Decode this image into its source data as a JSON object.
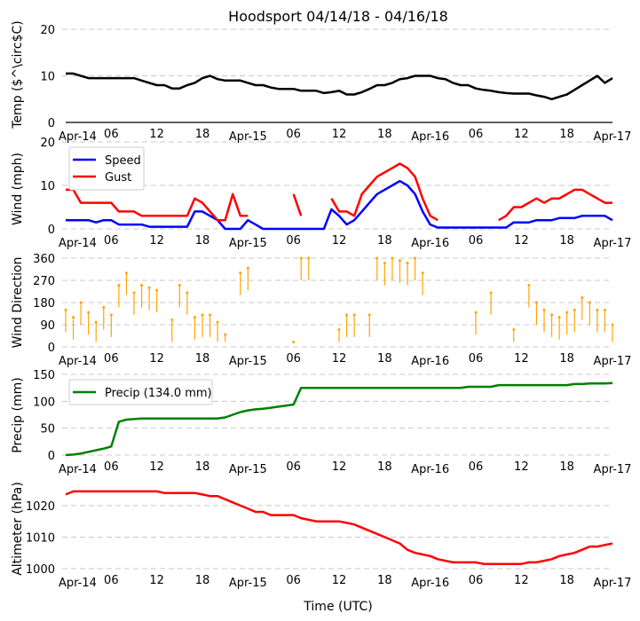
{
  "title": "Hoodsport 04/14/18 - 04/16/18",
  "xlabel": "Time (UTC)",
  "x_tick_labels": [
    "Apr-14",
    "06",
    "12",
    "18",
    "Apr-15",
    "06",
    "12",
    "18",
    "Apr-16",
    "06",
    "12",
    "18",
    "Apr-17"
  ],
  "x_hours_range": [
    0,
    72
  ],
  "chart_data": [
    {
      "type": "line",
      "id": "temp",
      "ylabel": "Temp ($^\\circ$C)",
      "ylabel_display": "Temp ( ̊C)",
      "ylim": [
        0,
        20
      ],
      "yticks": [
        0,
        10,
        20
      ],
      "grid": true,
      "series": [
        {
          "name": "Temp",
          "color": "#000000",
          "values": [
            10.5,
            10.5,
            10,
            9.5,
            9.5,
            9.5,
            9.5,
            9.5,
            9.5,
            9.5,
            9,
            8.5,
            8,
            8,
            7.3,
            7.3,
            8,
            8.5,
            9.5,
            10,
            9.3,
            9,
            9,
            9,
            8.5,
            8,
            8,
            7.5,
            7.2,
            7.2,
            7.2,
            6.8,
            6.8,
            6.8,
            6.3,
            6.5,
            6.8,
            6,
            6,
            6.5,
            7.2,
            8,
            8,
            8.5,
            9.3,
            9.5,
            10,
            10,
            10,
            9.5,
            9.3,
            8.5,
            8,
            8,
            7.3,
            7,
            6.8,
            6.5,
            6.3,
            6.2,
            6.2,
            6.2,
            5.8,
            5.5,
            5,
            5.5,
            6,
            7,
            8,
            9,
            10,
            8.5,
            9.5
          ]
        }
      ]
    },
    {
      "type": "line",
      "id": "wind",
      "ylabel": "Wind (mph)",
      "ylim": [
        0,
        20
      ],
      "yticks": [
        0,
        10,
        20
      ],
      "grid": true,
      "legend": "top-left",
      "series": [
        {
          "name": "Speed",
          "color": "#0000ff",
          "values": [
            2,
            2,
            2,
            2,
            1.5,
            2,
            2,
            1,
            1,
            1,
            1,
            0.5,
            0.5,
            0.5,
            0.5,
            0.5,
            0.5,
            4,
            4,
            3,
            2,
            0,
            0,
            0,
            2,
            1,
            0,
            0,
            0,
            0,
            0,
            0,
            0,
            0,
            0,
            4.5,
            3,
            1,
            2,
            4,
            6,
            8,
            9,
            10,
            11,
            10,
            8,
            4,
            1,
            0.3,
            0.3,
            0.3,
            0.3,
            0.3,
            0.3,
            0.3,
            0.3,
            0.3,
            0.3,
            1.5,
            1.5,
            1.5,
            2,
            2,
            2,
            2.5,
            2.5,
            2.5,
            3,
            3,
            3,
            3,
            2
          ]
        },
        {
          "name": "Gust",
          "color": "#ff0000",
          "values": [
            9,
            9,
            6,
            6,
            6,
            6,
            6,
            4,
            4,
            4,
            3,
            3,
            3,
            3,
            3,
            3,
            3,
            7,
            6,
            4,
            2,
            2,
            8,
            3,
            3,
            null,
            null,
            null,
            null,
            null,
            8,
            3,
            null,
            null,
            null,
            7,
            4,
            4,
            3,
            8,
            10,
            12,
            13,
            14,
            15,
            14,
            12,
            7,
            3,
            2,
            null,
            3,
            null,
            3,
            null,
            2,
            null,
            2,
            3,
            5,
            5,
            6,
            7,
            6,
            7,
            7,
            8,
            9,
            9,
            8,
            7,
            6,
            6
          ]
        }
      ]
    },
    {
      "type": "scatter",
      "id": "direction",
      "ylabel": "Wind Direction",
      "ylim": [
        0,
        360
      ],
      "yticks": [
        0,
        90,
        180,
        270,
        360
      ],
      "grid": true,
      "series": [
        {
          "name": "Direction",
          "color": "#ffa500",
          "values": [
            150,
            120,
            180,
            140,
            100,
            160,
            130,
            250,
            300,
            220,
            250,
            240,
            230,
            null,
            110,
            250,
            220,
            120,
            130,
            130,
            100,
            50,
            null,
            300,
            320,
            null,
            null,
            null,
            null,
            null,
            20,
            360,
            360,
            null,
            null,
            null,
            70,
            130,
            130,
            null,
            130,
            360,
            340,
            360,
            350,
            340,
            360,
            300,
            null,
            null,
            null,
            null,
            null,
            null,
            140,
            null,
            220,
            null,
            null,
            70,
            null,
            250,
            180,
            150,
            130,
            120,
            140,
            150,
            200,
            180,
            150,
            150,
            90
          ]
        }
      ]
    },
    {
      "type": "line",
      "id": "precip",
      "ylabel": "Precip (mm)",
      "ylim": [
        0,
        150
      ],
      "yticks": [
        0,
        50,
        100,
        150
      ],
      "grid": true,
      "legend": "top-left",
      "series": [
        {
          "name": "Precip (134.0 mm)",
          "color": "#008000",
          "values": [
            0,
            1,
            3,
            6,
            9,
            12,
            16,
            62,
            66,
            67,
            68,
            68,
            68,
            68,
            68,
            68,
            68,
            68,
            68,
            68,
            68,
            70,
            75,
            80,
            83,
            85,
            86,
            88,
            90,
            92,
            94,
            125,
            125,
            125,
            125,
            125,
            125,
            125,
            125,
            125,
            125,
            125,
            125,
            125,
            125,
            125,
            125,
            125,
            125,
            125,
            125,
            125,
            125,
            127,
            127,
            127,
            127,
            130,
            130,
            130,
            130,
            130,
            130,
            130,
            130,
            130,
            130,
            132,
            132,
            133,
            133,
            133,
            134
          ]
        }
      ]
    },
    {
      "type": "line",
      "id": "altimeter",
      "ylabel": "Altimeter (hPa)",
      "ylim": [
        1000,
        1027
      ],
      "yticks": [
        1000,
        1010,
        1020
      ],
      "grid": true,
      "series": [
        {
          "name": "Altimeter",
          "color": "#ff0000",
          "values": [
            1023.5,
            1024.5,
            1024.5,
            1024.5,
            1024.5,
            1024.5,
            1024.5,
            1024.5,
            1024.5,
            1024.5,
            1024.5,
            1024.5,
            1024.5,
            1024,
            1024,
            1024,
            1024,
            1024,
            1023.5,
            1023,
            1023,
            1022,
            1021,
            1020,
            1019,
            1018,
            1018,
            1017,
            1017,
            1017,
            1017,
            1016,
            1015.5,
            1015,
            1015,
            1015,
            1015,
            1014.5,
            1014,
            1013,
            1012,
            1011,
            1010,
            1009,
            1008,
            1006,
            1005,
            1004.5,
            1004,
            1003,
            1002.5,
            1002,
            1002,
            1002,
            1002,
            1001.5,
            1001.5,
            1001.5,
            1001.5,
            1001.5,
            1001.5,
            1002,
            1002,
            1002.5,
            1003,
            1004,
            1004.5,
            1005,
            1006,
            1007,
            1007,
            1007.5,
            1008
          ]
        }
      ]
    }
  ]
}
